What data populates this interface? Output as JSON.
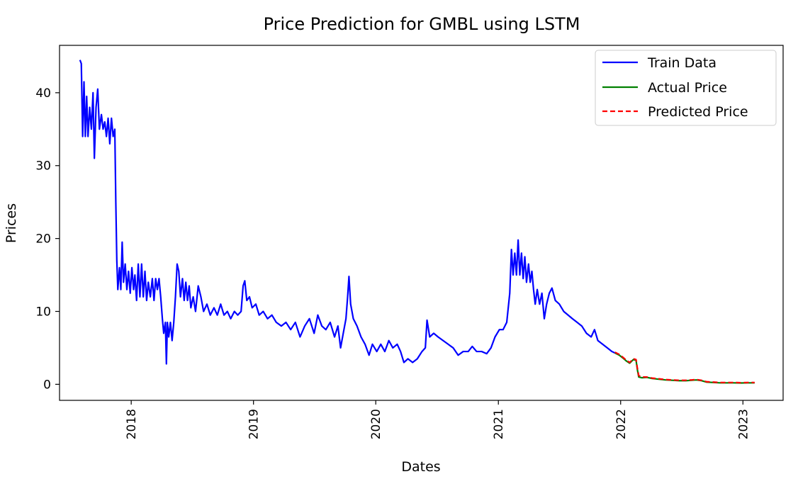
{
  "chart_data": {
    "type": "line",
    "title": "Price Prediction for GMBL using LSTM",
    "xlabel": "Dates",
    "ylabel": "Prices",
    "xlim": [
      "2017-06-01",
      "2023-05-01"
    ],
    "ylim": [
      -2.2,
      46.5
    ],
    "x_ticks": [
      "2018",
      "2019",
      "2020",
      "2021",
      "2022",
      "2023"
    ],
    "y_ticks": [
      0,
      10,
      20,
      30,
      40
    ],
    "grid": false,
    "legend": "top-right",
    "series": [
      {
        "name": "Train Data",
        "color": "#0000ff",
        "style": "solid",
        "points": [
          [
            "2017-08-01",
            44.5
          ],
          [
            "2017-08-05",
            44.0
          ],
          [
            "2017-08-09",
            34.0
          ],
          [
            "2017-08-13",
            41.5
          ],
          [
            "2017-08-17",
            34.0
          ],
          [
            "2017-08-21",
            39.5
          ],
          [
            "2017-08-25",
            34.0
          ],
          [
            "2017-08-30",
            38.0
          ],
          [
            "2017-09-04",
            35.0
          ],
          [
            "2017-09-09",
            40.0
          ],
          [
            "2017-09-13",
            31.0
          ],
          [
            "2017-09-18",
            38.0
          ],
          [
            "2017-09-23",
            40.5
          ],
          [
            "2017-09-28",
            35.0
          ],
          [
            "2017-10-04",
            37.0
          ],
          [
            "2017-10-09",
            35.0
          ],
          [
            "2017-10-14",
            36.0
          ],
          [
            "2017-10-19",
            34.0
          ],
          [
            "2017-10-24",
            36.5
          ],
          [
            "2017-10-29",
            33.0
          ],
          [
            "2017-11-03",
            36.5
          ],
          [
            "2017-11-08",
            34.0
          ],
          [
            "2017-11-13",
            35.0
          ],
          [
            "2017-11-16",
            25.0
          ],
          [
            "2017-11-19",
            17.0
          ],
          [
            "2017-11-22",
            13.0
          ],
          [
            "2017-11-27",
            16.0
          ],
          [
            "2017-12-01",
            13.0
          ],
          [
            "2017-12-05",
            19.5
          ],
          [
            "2017-12-09",
            14.0
          ],
          [
            "2017-12-14",
            16.5
          ],
          [
            "2017-12-19",
            13.0
          ],
          [
            "2017-12-24",
            15.5
          ],
          [
            "2017-12-29",
            12.5
          ],
          [
            "2018-01-03",
            16.0
          ],
          [
            "2018-01-08",
            13.0
          ],
          [
            "2018-01-12",
            15.0
          ],
          [
            "2018-01-17",
            11.5
          ],
          [
            "2018-01-22",
            16.5
          ],
          [
            "2018-01-27",
            12.0
          ],
          [
            "2018-02-01",
            16.5
          ],
          [
            "2018-02-06",
            12.0
          ],
          [
            "2018-02-11",
            15.5
          ],
          [
            "2018-02-16",
            11.5
          ],
          [
            "2018-02-21",
            14.0
          ],
          [
            "2018-02-27",
            12.0
          ],
          [
            "2018-03-05",
            14.5
          ],
          [
            "2018-03-10",
            11.5
          ],
          [
            "2018-03-15",
            14.5
          ],
          [
            "2018-03-20",
            13.0
          ],
          [
            "2018-03-25",
            14.5
          ],
          [
            "2018-03-30",
            12.0
          ],
          [
            "2018-04-04",
            9.0
          ],
          [
            "2018-04-08",
            7.0
          ],
          [
            "2018-04-13",
            8.5
          ],
          [
            "2018-04-16",
            2.8
          ],
          [
            "2018-04-19",
            8.5
          ],
          [
            "2018-04-23",
            6.5
          ],
          [
            "2018-04-28",
            8.5
          ],
          [
            "2018-05-03",
            6.0
          ],
          [
            "2018-05-08",
            8.5
          ],
          [
            "2018-05-13",
            12.0
          ],
          [
            "2018-05-18",
            16.5
          ],
          [
            "2018-05-23",
            15.5
          ],
          [
            "2018-05-28",
            12.0
          ],
          [
            "2018-06-03",
            14.5
          ],
          [
            "2018-06-08",
            11.5
          ],
          [
            "2018-06-13",
            14.0
          ],
          [
            "2018-06-18",
            11.5
          ],
          [
            "2018-06-23",
            13.5
          ],
          [
            "2018-06-28",
            10.5
          ],
          [
            "2018-07-05",
            12.0
          ],
          [
            "2018-07-12",
            10.0
          ],
          [
            "2018-07-20",
            13.5
          ],
          [
            "2018-07-28",
            12.0
          ],
          [
            "2018-08-05",
            10.0
          ],
          [
            "2018-08-15",
            11.0
          ],
          [
            "2018-08-25",
            9.5
          ],
          [
            "2018-09-05",
            10.5
          ],
          [
            "2018-09-15",
            9.5
          ],
          [
            "2018-09-25",
            11.0
          ],
          [
            "2018-10-05",
            9.5
          ],
          [
            "2018-10-15",
            10.0
          ],
          [
            "2018-10-25",
            9.0
          ],
          [
            "2018-11-05",
            10.0
          ],
          [
            "2018-11-15",
            9.5
          ],
          [
            "2018-11-25",
            10.0
          ],
          [
            "2018-12-01",
            13.5
          ],
          [
            "2018-12-06",
            14.2
          ],
          [
            "2018-12-12",
            11.5
          ],
          [
            "2018-12-20",
            12.0
          ],
          [
            "2018-12-28",
            10.5
          ],
          [
            "2019-01-08",
            11.0
          ],
          [
            "2019-01-18",
            9.5
          ],
          [
            "2019-01-30",
            10.0
          ],
          [
            "2019-02-12",
            9.0
          ],
          [
            "2019-02-25",
            9.5
          ],
          [
            "2019-03-10",
            8.5
          ],
          [
            "2019-03-25",
            8.0
          ],
          [
            "2019-04-08",
            8.5
          ],
          [
            "2019-04-22",
            7.5
          ],
          [
            "2019-05-06",
            8.5
          ],
          [
            "2019-05-20",
            6.5
          ],
          [
            "2019-06-03",
            8.0
          ],
          [
            "2019-06-17",
            9.0
          ],
          [
            "2019-07-01",
            7.0
          ],
          [
            "2019-07-12",
            9.5
          ],
          [
            "2019-07-24",
            8.0
          ],
          [
            "2019-08-05",
            7.5
          ],
          [
            "2019-08-18",
            8.5
          ],
          [
            "2019-08-31",
            6.5
          ],
          [
            "2019-09-10",
            8.0
          ],
          [
            "2019-09-18",
            5.0
          ],
          [
            "2019-09-26",
            7.0
          ],
          [
            "2019-10-04",
            9.0
          ],
          [
            "2019-10-09",
            12.0
          ],
          [
            "2019-10-13",
            14.8
          ],
          [
            "2019-10-18",
            11.0
          ],
          [
            "2019-10-26",
            9.0
          ],
          [
            "2019-11-06",
            8.0
          ],
          [
            "2019-11-18",
            6.5
          ],
          [
            "2019-11-30",
            5.5
          ],
          [
            "2019-12-12",
            4.0
          ],
          [
            "2019-12-22",
            5.5
          ],
          [
            "2020-01-04",
            4.5
          ],
          [
            "2020-01-16",
            5.5
          ],
          [
            "2020-01-28",
            4.5
          ],
          [
            "2020-02-09",
            6.0
          ],
          [
            "2020-02-21",
            5.0
          ],
          [
            "2020-03-05",
            5.5
          ],
          [
            "2020-03-15",
            4.5
          ],
          [
            "2020-03-25",
            3.0
          ],
          [
            "2020-04-06",
            3.5
          ],
          [
            "2020-04-20",
            3.0
          ],
          [
            "2020-05-04",
            3.5
          ],
          [
            "2020-05-18",
            4.5
          ],
          [
            "2020-05-28",
            5.0
          ],
          [
            "2020-06-02",
            8.8
          ],
          [
            "2020-06-10",
            6.5
          ],
          [
            "2020-06-22",
            7.0
          ],
          [
            "2020-07-05",
            6.5
          ],
          [
            "2020-07-20",
            6.0
          ],
          [
            "2020-08-04",
            5.5
          ],
          [
            "2020-08-19",
            5.0
          ],
          [
            "2020-09-03",
            4.0
          ],
          [
            "2020-09-18",
            4.5
          ],
          [
            "2020-10-03",
            4.5
          ],
          [
            "2020-10-15",
            5.2
          ],
          [
            "2020-10-28",
            4.5
          ],
          [
            "2020-11-12",
            4.5
          ],
          [
            "2020-11-27",
            4.2
          ],
          [
            "2020-12-10",
            5.0
          ],
          [
            "2020-12-22",
            6.5
          ],
          [
            "2021-01-04",
            7.5
          ],
          [
            "2021-01-15",
            7.5
          ],
          [
            "2021-01-26",
            8.5
          ],
          [
            "2021-02-04",
            12.5
          ],
          [
            "2021-02-09",
            18.5
          ],
          [
            "2021-02-14",
            15.0
          ],
          [
            "2021-02-19",
            18.0
          ],
          [
            "2021-02-24",
            15.0
          ],
          [
            "2021-03-01",
            19.8
          ],
          [
            "2021-03-06",
            15.0
          ],
          [
            "2021-03-11",
            18.0
          ],
          [
            "2021-03-16",
            14.5
          ],
          [
            "2021-03-21",
            17.5
          ],
          [
            "2021-03-26",
            14.0
          ],
          [
            "2021-04-01",
            16.5
          ],
          [
            "2021-04-06",
            14.0
          ],
          [
            "2021-04-11",
            15.5
          ],
          [
            "2021-04-16",
            13.0
          ],
          [
            "2021-04-21",
            11.0
          ],
          [
            "2021-04-27",
            13.0
          ],
          [
            "2021-05-04",
            11.0
          ],
          [
            "2021-05-11",
            12.5
          ],
          [
            "2021-05-18",
            9.0
          ],
          [
            "2021-05-25",
            11.0
          ],
          [
            "2021-06-02",
            12.5
          ],
          [
            "2021-06-10",
            13.2
          ],
          [
            "2021-06-20",
            11.5
          ],
          [
            "2021-07-02",
            11.0
          ],
          [
            "2021-07-15",
            10.0
          ],
          [
            "2021-07-28",
            9.5
          ],
          [
            "2021-08-10",
            9.0
          ],
          [
            "2021-08-24",
            8.5
          ],
          [
            "2021-09-07",
            8.0
          ],
          [
            "2021-09-21",
            7.0
          ],
          [
            "2021-10-05",
            6.5
          ],
          [
            "2021-10-15",
            7.5
          ],
          [
            "2021-10-25",
            6.0
          ],
          [
            "2021-11-08",
            5.5
          ],
          [
            "2021-11-22",
            5.0
          ],
          [
            "2021-12-06",
            4.5
          ],
          [
            "2021-12-15",
            4.3
          ]
        ]
      },
      {
        "name": "Actual Price",
        "color": "#008000",
        "style": "solid",
        "points": [
          [
            "2021-12-15",
            4.3
          ],
          [
            "2021-12-28",
            4.0
          ],
          [
            "2022-01-08",
            3.6
          ],
          [
            "2022-01-18",
            3.2
          ],
          [
            "2022-01-28",
            2.9
          ],
          [
            "2022-02-08",
            3.4
          ],
          [
            "2022-02-16",
            3.3
          ],
          [
            "2022-02-20",
            2.0
          ],
          [
            "2022-02-24",
            1.0
          ],
          [
            "2022-03-05",
            0.9
          ],
          [
            "2022-03-20",
            0.95
          ],
          [
            "2022-04-05",
            0.8
          ],
          [
            "2022-04-25",
            0.7
          ],
          [
            "2022-05-15",
            0.6
          ],
          [
            "2022-06-05",
            0.55
          ],
          [
            "2022-06-25",
            0.5
          ],
          [
            "2022-07-15",
            0.5
          ],
          [
            "2022-08-01",
            0.55
          ],
          [
            "2022-08-15",
            0.6
          ],
          [
            "2022-08-30",
            0.5
          ],
          [
            "2022-09-15",
            0.3
          ],
          [
            "2022-10-05",
            0.25
          ],
          [
            "2022-10-25",
            0.2
          ],
          [
            "2022-11-15",
            0.2
          ],
          [
            "2022-12-05",
            0.2
          ],
          [
            "2022-12-25",
            0.18
          ],
          [
            "2023-01-15",
            0.2
          ],
          [
            "2023-02-05",
            0.2
          ]
        ]
      },
      {
        "name": "Predicted Price",
        "color": "#ff0000",
        "style": "dashed",
        "points": [
          [
            "2021-12-15",
            4.4
          ],
          [
            "2021-12-28",
            4.1
          ],
          [
            "2022-01-08",
            3.7
          ],
          [
            "2022-01-18",
            3.3
          ],
          [
            "2022-01-28",
            3.0
          ],
          [
            "2022-02-08",
            3.5
          ],
          [
            "2022-02-16",
            3.4
          ],
          [
            "2022-02-20",
            2.2
          ],
          [
            "2022-02-24",
            1.2
          ],
          [
            "2022-03-05",
            1.0
          ],
          [
            "2022-03-20",
            1.0
          ],
          [
            "2022-04-05",
            0.85
          ],
          [
            "2022-04-25",
            0.75
          ],
          [
            "2022-05-15",
            0.65
          ],
          [
            "2022-06-05",
            0.6
          ],
          [
            "2022-06-25",
            0.55
          ],
          [
            "2022-07-15",
            0.55
          ],
          [
            "2022-08-01",
            0.6
          ],
          [
            "2022-08-15",
            0.65
          ],
          [
            "2022-08-30",
            0.55
          ],
          [
            "2022-09-15",
            0.35
          ],
          [
            "2022-10-05",
            0.3
          ],
          [
            "2022-10-25",
            0.25
          ],
          [
            "2022-11-15",
            0.25
          ],
          [
            "2022-12-05",
            0.25
          ],
          [
            "2022-12-25",
            0.22
          ],
          [
            "2023-01-15",
            0.25
          ],
          [
            "2023-02-05",
            0.25
          ]
        ]
      }
    ]
  }
}
